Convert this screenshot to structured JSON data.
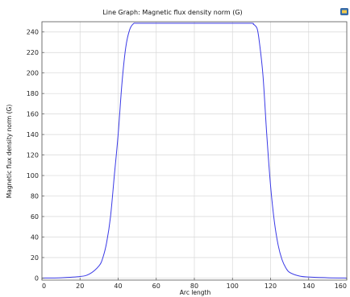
{
  "chart_data": {
    "type": "line",
    "title": "Line Graph: Magnetic flux density norm (G)",
    "xlabel": "Arc length",
    "ylabel": "Magnetic flux density norm (G)",
    "xlim": [
      0,
      160
    ],
    "ylim": [
      -2,
      250
    ],
    "xticks": [
      0,
      20,
      40,
      60,
      80,
      100,
      120,
      140,
      160
    ],
    "yticks": [
      0,
      20,
      40,
      60,
      80,
      100,
      120,
      140,
      160,
      180,
      200,
      220,
      240
    ],
    "grid": true,
    "series": [
      {
        "color": "#3a3ae6",
        "x": [
          0,
          10,
          20,
          25,
          30,
          32,
          34,
          36,
          38,
          40,
          42,
          44,
          46,
          48,
          50,
          60,
          80,
          100,
          110,
          111,
          112,
          113,
          114,
          116,
          118,
          120,
          122,
          124,
          126,
          128,
          130,
          135,
          140,
          150,
          160
        ],
        "y": [
          0,
          0.3,
          1.5,
          4,
          12,
          20,
          35,
          60,
          100,
          140,
          190,
          225,
          242,
          248,
          248.5,
          248.5,
          248.5,
          248.5,
          248.5,
          247.5,
          246,
          243,
          232,
          198,
          140,
          90,
          55,
          32,
          18,
          10,
          5.5,
          2,
          1,
          0.3,
          0
        ]
      }
    ]
  },
  "legend_icon": "colorbar-icon"
}
